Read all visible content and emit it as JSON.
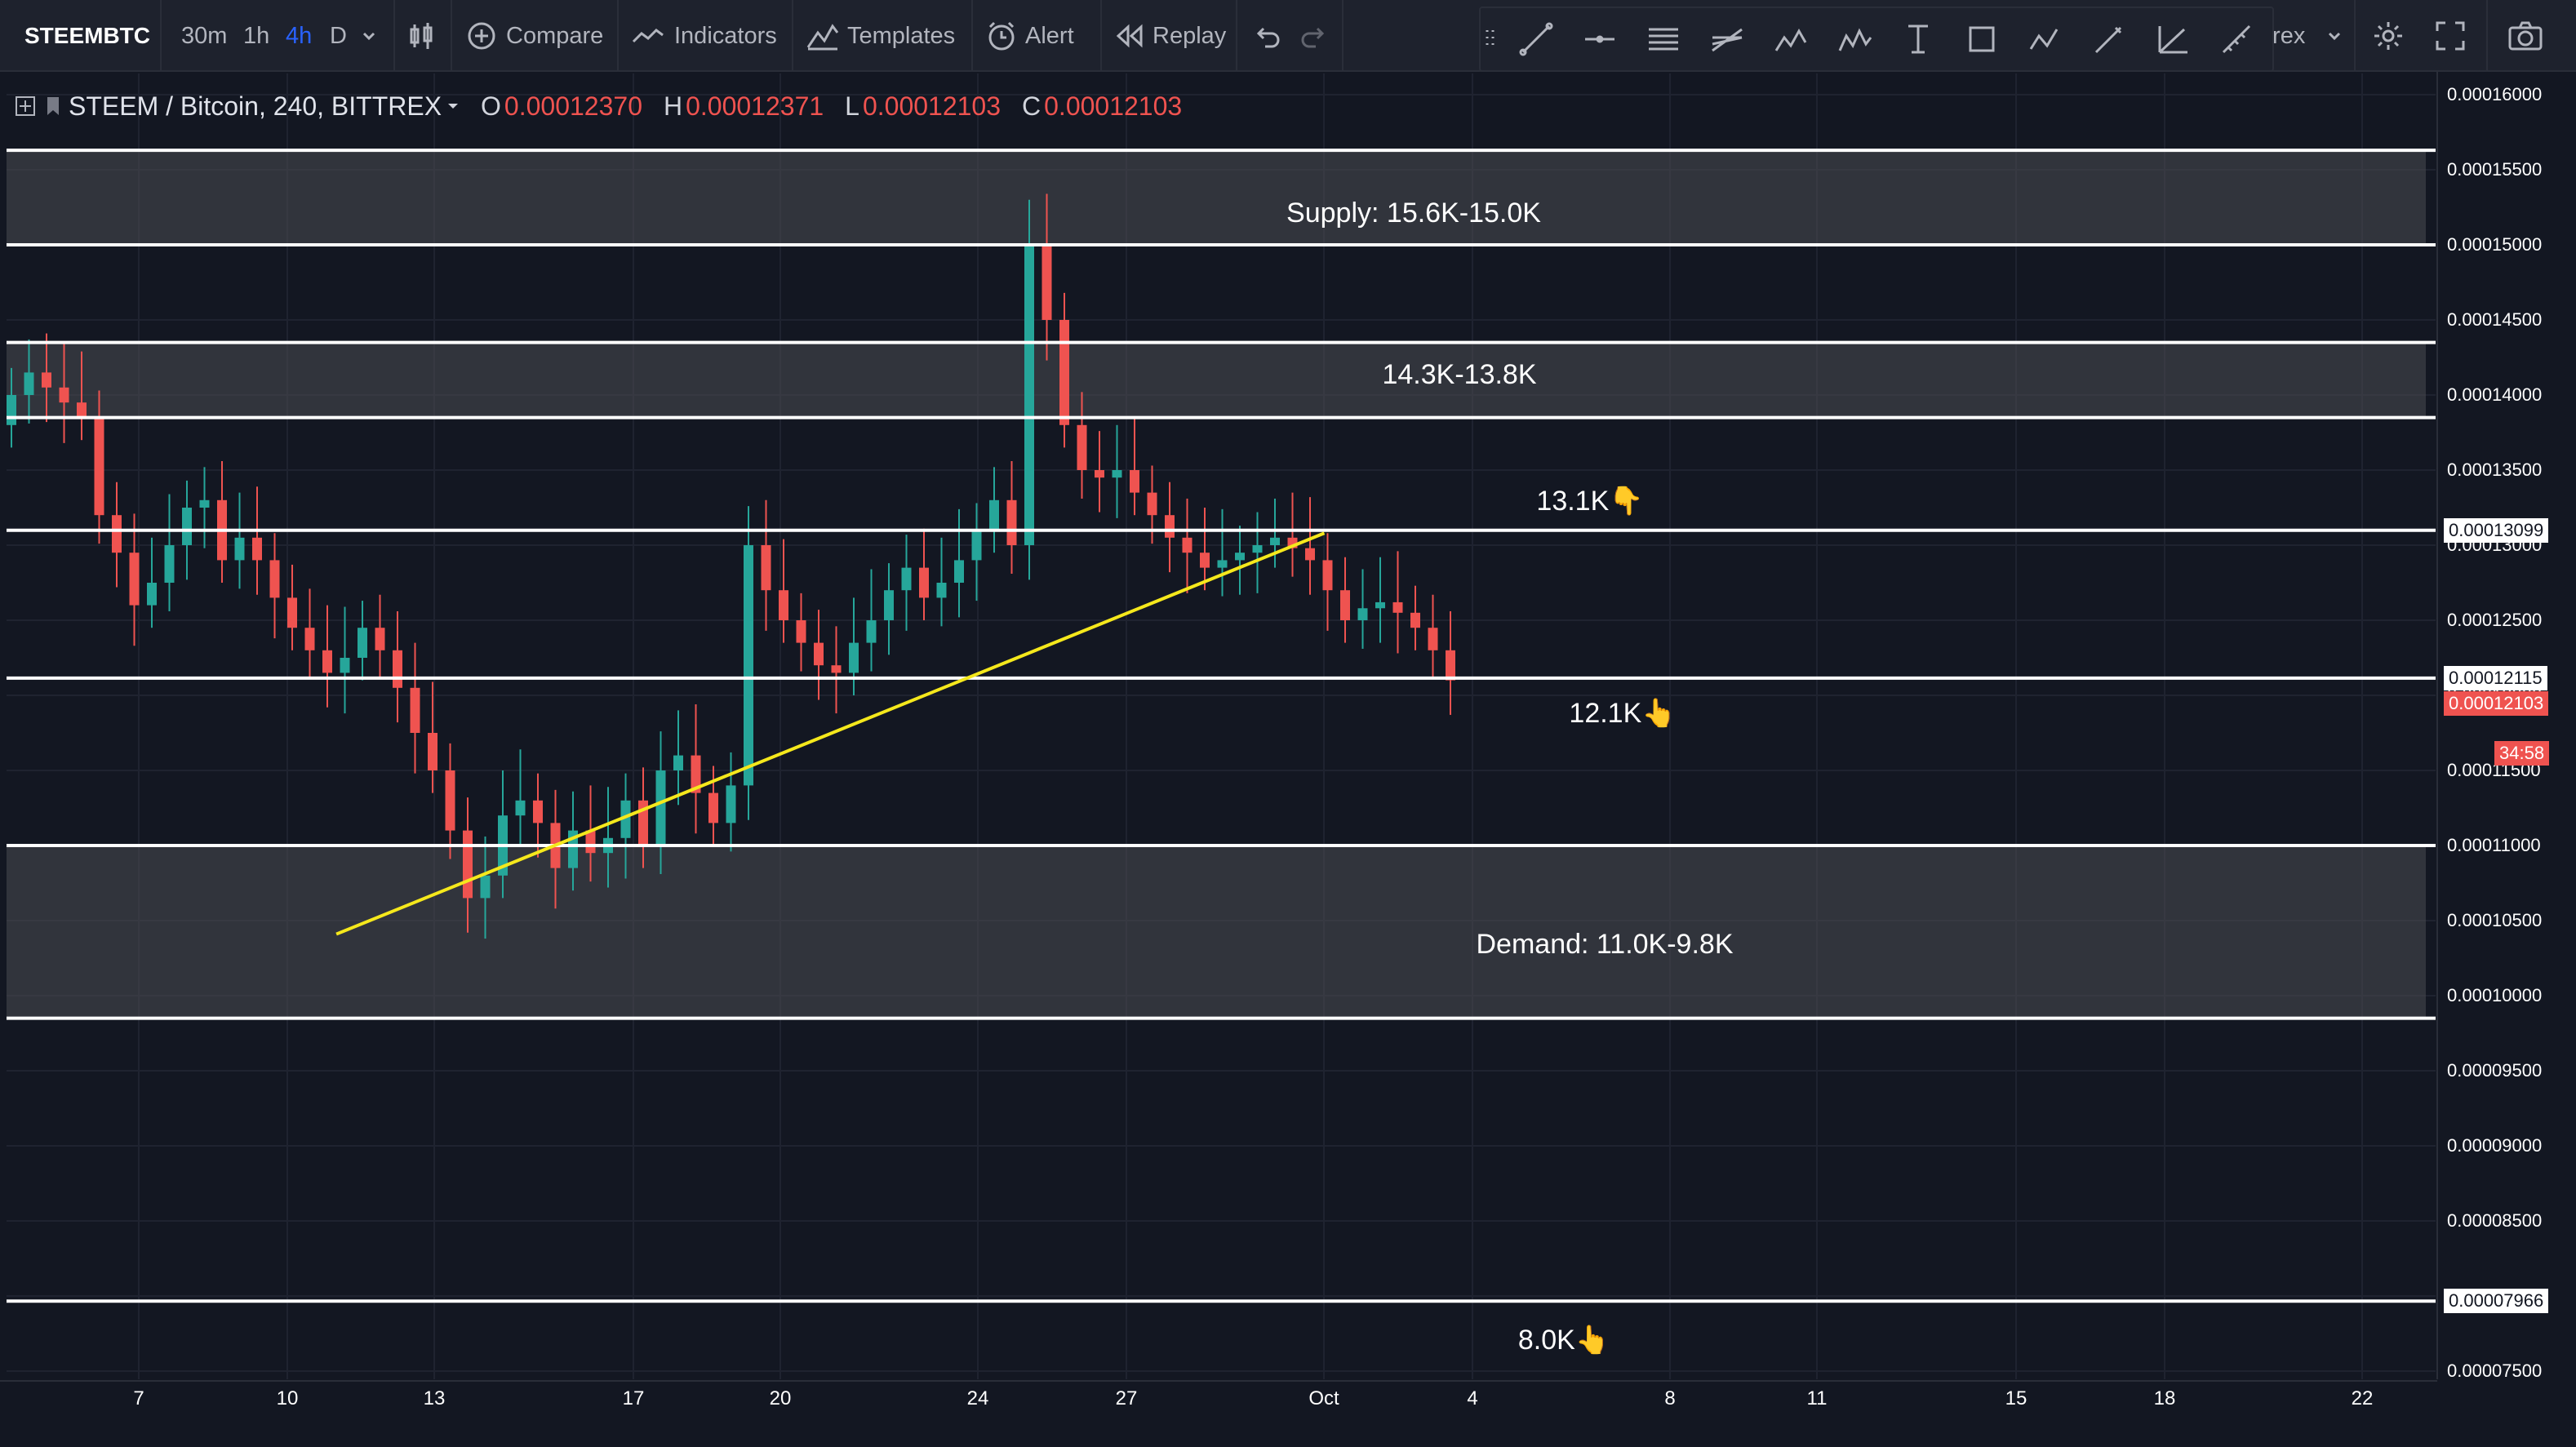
{
  "toolbar": {
    "symbol": "STEEMBTC",
    "intervals": [
      "30m",
      "1h",
      "4h",
      "D"
    ],
    "active_interval": "4h",
    "compare_label": "Compare",
    "indicators_label": "Indicators",
    "templates_label": "Templates",
    "alert_label": "Alert",
    "replay_label": "Replay",
    "exchange_partial": "trex"
  },
  "legend": {
    "title": "STEEM / Bitcoin, 240, BITTREX",
    "open_label": "O",
    "open": "0.00012370",
    "high_label": "H",
    "high": "0.00012371",
    "low_label": "L",
    "low": "0.00012103",
    "close_label": "C",
    "close": "0.00012103"
  },
  "price_scale": {
    "ticks": [
      "0.00016000",
      "0.00015500",
      "0.00015000",
      "0.00014500",
      "0.00014000",
      "0.00013500",
      "0.00013000",
      "0.00012500",
      "0.00012000",
      "0.00011500",
      "0.00011000",
      "0.00010500",
      "0.00010000",
      "0.00009500",
      "0.00009000",
      "0.00008500",
      "0.00008000",
      "0.00007500"
    ],
    "badges": {
      "line_13099": "0.00013099",
      "line_12115": "0.00012115",
      "last_price": "0.00012103",
      "countdown": "34:58",
      "line_7966": "0.00007966"
    }
  },
  "time_scale": {
    "labels": [
      "7",
      "10",
      "13",
      "17",
      "20",
      "24",
      "27",
      "Oct",
      "4",
      "8",
      "11",
      "15",
      "18",
      "22"
    ]
  },
  "annotations": {
    "supply": "Supply: 15.6K-15.0K",
    "zone_mid": "14.3K-13.8K",
    "level_13_1": "13.1K👇",
    "level_12_1": "12.1K👆",
    "demand": "Demand: 11.0K-9.8K",
    "level_8_0": "8.0K👆"
  },
  "colors": {
    "background": "#131722",
    "up": "#26a69a",
    "down": "#ef5350",
    "trendline": "#f5e81c",
    "zone": "#4a4c52",
    "accent": "#2962ff"
  },
  "chart_data": {
    "type": "candlestick",
    "scale": "linear",
    "ylim": [
      7.5e-05,
      0.00016
    ],
    "horizontal_levels": [
      0.0001563,
      0.00015,
      0.0001435,
      0.0001385,
      0.00013099,
      0.00012115,
      0.00011,
      9.85e-05,
      7.966e-05
    ],
    "zones": [
      {
        "label": "Supply",
        "from": 0.00015,
        "to": 0.0001563
      },
      {
        "label": "14.3K-13.8K",
        "from": 0.0001385,
        "to": 0.0001435
      },
      {
        "label": "Demand",
        "from": 9.85e-05,
        "to": 0.00011
      }
    ],
    "trendline": {
      "start": [
        11,
        0.0001041
      ],
      "end": [
        4,
        0.0001308
      ],
      "start_note": "September 11 to October 4"
    },
    "last_close": 0.00012103,
    "candles_close": [
      0.00014,
      0.0001415,
      0.0001405,
      0.0001395,
      0.0001385,
      0.000132,
      0.0001295,
      0.000126,
      0.0001275,
      0.00013,
      0.0001325,
      0.000133,
      0.000129,
      0.0001305,
      0.000129,
      0.0001265,
      0.0001245,
      0.000123,
      0.0001215,
      0.0001225,
      0.0001245,
      0.000123,
      0.0001205,
      0.0001175,
      0.000115,
      0.000111,
      0.0001065,
      0.000108,
      0.000112,
      0.000113,
      0.0001115,
      0.0001085,
      0.000111,
      0.0001095,
      0.0001105,
      0.000113,
      0.00011,
      0.000115,
      0.000116,
      0.0001135,
      0.0001115,
      0.000114,
      0.00013,
      0.000127,
      0.000125,
      0.0001235,
      0.000122,
      0.0001215,
      0.0001235,
      0.000125,
      0.000127,
      0.0001285,
      0.0001265,
      0.0001275,
      0.000129,
      0.000131,
      0.000133,
      0.00013,
      0.00015,
      0.000145,
      0.000138,
      0.000135,
      0.0001345,
      0.000135,
      0.0001335,
      0.000132,
      0.0001305,
      0.0001295,
      0.0001285,
      0.000129,
      0.0001295,
      0.00013,
      0.0001305,
      0.0001298,
      0.000129,
      0.000127,
      0.000125,
      0.0001258,
      0.0001262,
      0.0001255,
      0.0001245,
      0.000123,
      0.000121
    ]
  }
}
